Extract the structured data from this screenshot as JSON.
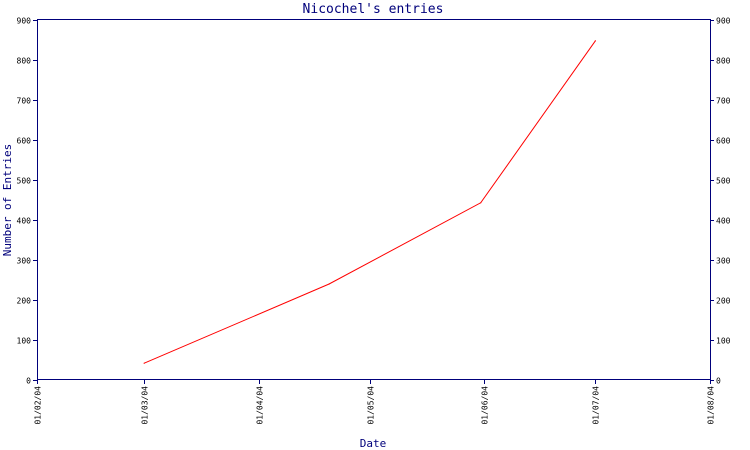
{
  "chart_data": {
    "type": "line",
    "title": "Nicochel's entries",
    "xlabel": "Date",
    "ylabel": "Number of Entries",
    "ylim": [
      0,
      900
    ],
    "y_ticks": [
      0,
      100,
      200,
      300,
      400,
      500,
      600,
      700,
      800,
      900
    ],
    "y_tick_labels": [
      "0",
      "100",
      "200",
      "300",
      "400",
      "500",
      "600",
      "700",
      "800",
      "900"
    ],
    "x_ticks": [
      "01/02/04",
      "01/03/04",
      "01/04/04",
      "01/05/04",
      "01/06/04",
      "01/07/04",
      "01/08/04"
    ],
    "right_axis": true,
    "grid": false,
    "series": [
      {
        "color": "#ff0000",
        "points": [
          {
            "x": "2004-03-01",
            "y": 42
          },
          {
            "x": "2004-04-20",
            "y": 240
          },
          {
            "x": "2004-05-31",
            "y": 443
          },
          {
            "x": "2004-07-01",
            "y": 848
          }
        ]
      }
    ]
  },
  "colors": {
    "axis": "#00007b",
    "line": "#ff0000"
  }
}
